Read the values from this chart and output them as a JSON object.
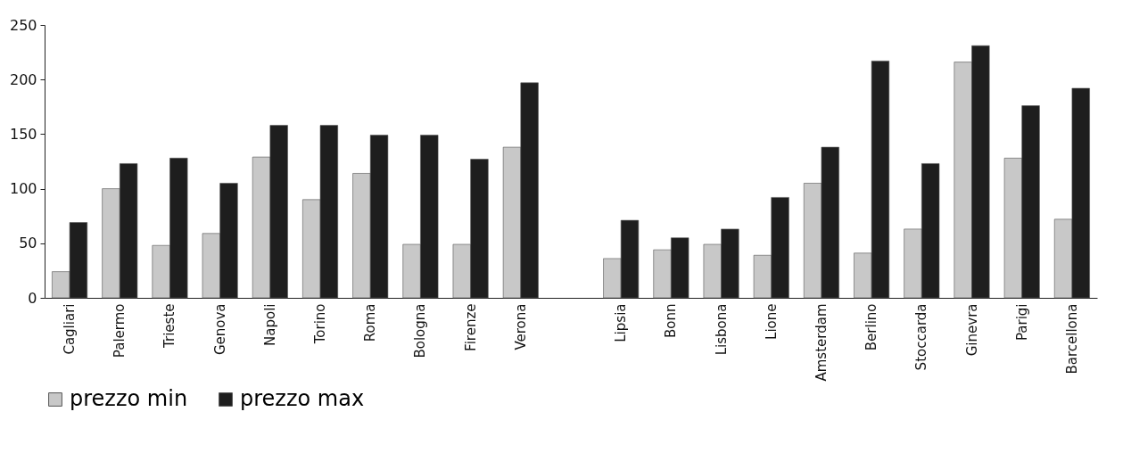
{
  "chart_data": {
    "type": "bar",
    "categories": [
      "Cagliari",
      "Palermo",
      "Trieste",
      "Genova",
      "Napoli",
      "Torino",
      "Roma",
      "Bologna",
      "Firenze",
      "Verona",
      null,
      "Lipsia",
      "Bonn",
      "Lisbona",
      "Lione",
      "Amsterdam",
      "Berlino",
      "Stoccarda",
      "Ginevra",
      "Parigi",
      "Barcellona"
    ],
    "series": [
      {
        "name": "prezzo min",
        "color": "#c8c8c8",
        "values": [
          24,
          100,
          48,
          59,
          129,
          90,
          114,
          49,
          49,
          138,
          null,
          36,
          44,
          49,
          39,
          105,
          41,
          63,
          216,
          128,
          72
        ]
      },
      {
        "name": "prezzo max",
        "color": "#1e1e1e",
        "values": [
          69,
          123,
          128,
          105,
          158,
          158,
          149,
          149,
          127,
          197,
          null,
          71,
          55,
          63,
          92,
          138,
          217,
          123,
          231,
          176,
          192
        ]
      }
    ],
    "ylim": [
      0,
      250
    ],
    "yticks": [
      0,
      50,
      100,
      150,
      200,
      250
    ],
    "grid": false,
    "legend": "bottom"
  }
}
